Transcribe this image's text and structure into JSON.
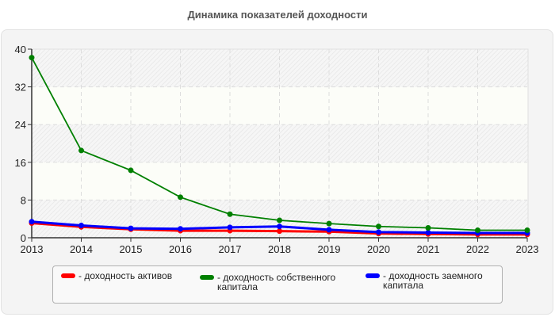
{
  "chart_data": {
    "type": "line",
    "title": "Динамика показателей доходности",
    "xlabel": "",
    "ylabel": "",
    "categories": [
      "2013",
      "2014",
      "2015",
      "2016",
      "2017",
      "2018",
      "2019",
      "2020",
      "2021",
      "2022",
      "2023"
    ],
    "series": [
      {
        "name": "- доходность активов",
        "color": "#ff0000",
        "values": [
          3.1,
          2.3,
          1.8,
          1.5,
          1.5,
          1.4,
          1.3,
          0.9,
          0.8,
          0.7,
          0.7
        ]
      },
      {
        "name": "- доходность собственного капитала",
        "color": "#008000",
        "values": [
          38.2,
          18.5,
          14.3,
          8.6,
          5.0,
          3.7,
          3.0,
          2.4,
          2.1,
          1.6,
          1.6
        ]
      },
      {
        "name": "- доходность заемного капитала",
        "color": "#0000ff",
        "values": [
          3.4,
          2.6,
          2.0,
          1.9,
          2.2,
          2.4,
          1.7,
          1.2,
          1.1,
          1.0,
          1.0
        ]
      }
    ],
    "ylim": [
      0,
      40
    ],
    "yticks": [
      0,
      8,
      16,
      24,
      32,
      40
    ],
    "grid": true,
    "legend_position": "bottom"
  },
  "legend": {
    "items": [
      {
        "label": "- доходность активов",
        "color": "#ff0000"
      },
      {
        "label": "- доходность собственного\nкапитала",
        "color": "#008000"
      },
      {
        "label": "- доходность заемного\nкапитала",
        "color": "#0000ff"
      }
    ]
  }
}
